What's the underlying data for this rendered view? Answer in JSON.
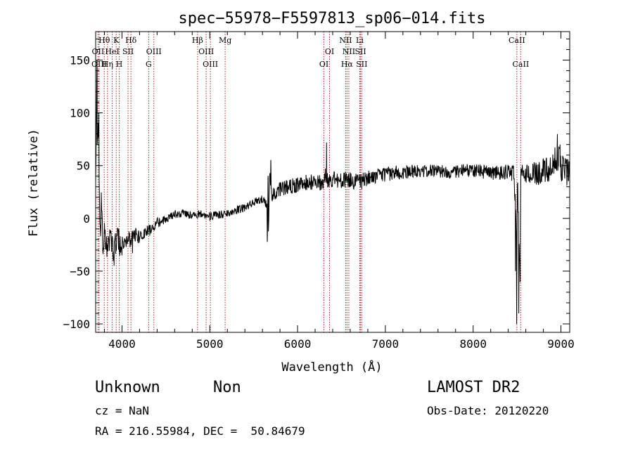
{
  "chart_data": {
    "type": "line",
    "title": "spec−55978−F5597813_sp06−014.fits",
    "xlabel": "Wavelength (Å)",
    "ylabel": "Flux (relative)",
    "xlim": [
      3700,
      9100
    ],
    "ylim": [
      -108,
      177
    ],
    "x_ticks": [
      4000,
      5000,
      6000,
      7000,
      8000,
      9000
    ],
    "y_ticks": [
      -100,
      -50,
      0,
      50,
      100,
      150
    ],
    "grid": false,
    "line_color": "#000000",
    "marker_color": "#b22222",
    "spectral_lines": [
      {
        "label": "Hθ",
        "x": 3798,
        "row": 1
      },
      {
        "label": "OII",
        "x": 3727,
        "row": 2
      },
      {
        "label": "OIII",
        "x": 3740,
        "row": 3
      },
      {
        "label": "K",
        "x": 3934,
        "row": 1
      },
      {
        "label": "HeI",
        "x": 3889,
        "row": 2
      },
      {
        "label": "Hη",
        "x": 3835,
        "row": 3
      },
      {
        "label": "Hδ",
        "x": 4102,
        "row": 1
      },
      {
        "label": "SII",
        "x": 4069,
        "row": 2
      },
      {
        "label": "H",
        "x": 3969,
        "row": 3
      },
      {
        "label": "OIII",
        "x": 4363,
        "row": 2
      },
      {
        "label": "G",
        "x": 4304,
        "row": 3
      },
      {
        "label": "Hβ",
        "x": 4861,
        "row": 1
      },
      {
        "label": "OIII",
        "x": 4959,
        "row": 2
      },
      {
        "label": "OIII",
        "x": 5007,
        "row": 3
      },
      {
        "label": "Mg",
        "x": 5175,
        "row": 1
      },
      {
        "label": "OI",
        "x": 6364,
        "row": 2
      },
      {
        "label": "OI",
        "x": 6300,
        "row": 3
      },
      {
        "label": "NII",
        "x": 6548,
        "row": 1
      },
      {
        "label": "Li",
        "x": 6708,
        "row": 1
      },
      {
        "label": "NII",
        "x": 6584,
        "row": 2
      },
      {
        "label": "SII",
        "x": 6717,
        "row": 2
      },
      {
        "label": "Hα",
        "x": 6563,
        "row": 3
      },
      {
        "label": "SII",
        "x": 6731,
        "row": 3
      },
      {
        "label": "CaII",
        "x": 8498,
        "row": 1
      },
      {
        "label": "CaII",
        "x": 8542,
        "row": 3
      }
    ],
    "spectrum_anchors": [
      [
        3700,
        40
      ],
      [
        3712,
        130
      ],
      [
        3720,
        60
      ],
      [
        3735,
        100
      ],
      [
        3745,
        10
      ],
      [
        3755,
        -20
      ],
      [
        3765,
        20
      ],
      [
        3780,
        -25
      ],
      [
        3800,
        -10
      ],
      [
        3830,
        -35
      ],
      [
        3860,
        -15
      ],
      [
        3900,
        -30
      ],
      [
        3950,
        -20
      ],
      [
        4000,
        -25
      ],
      [
        4050,
        -22
      ],
      [
        4100,
        -20
      ],
      [
        4150,
        -15
      ],
      [
        4200,
        -18
      ],
      [
        4250,
        -14
      ],
      [
        4300,
        -12
      ],
      [
        4350,
        -8
      ],
      [
        4400,
        -4
      ],
      [
        4450,
        -3
      ],
      [
        4500,
        -1
      ],
      [
        4550,
        2
      ],
      [
        4600,
        4
      ],
      [
        4700,
        5
      ],
      [
        4800,
        3
      ],
      [
        4900,
        4
      ],
      [
        5000,
        2
      ],
      [
        5100,
        3
      ],
      [
        5200,
        5
      ],
      [
        5300,
        8
      ],
      [
        5400,
        10
      ],
      [
        5500,
        15
      ],
      [
        5600,
        18
      ],
      [
        5650,
        15
      ],
      [
        5670,
        -15
      ],
      [
        5685,
        48
      ],
      [
        5700,
        22
      ],
      [
        5800,
        28
      ],
      [
        5900,
        30
      ],
      [
        6000,
        32
      ],
      [
        6100,
        34
      ],
      [
        6200,
        35
      ],
      [
        6300,
        33
      ],
      [
        6320,
        45
      ],
      [
        6330,
        36
      ],
      [
        6400,
        37
      ],
      [
        6500,
        35
      ],
      [
        6563,
        38
      ],
      [
        6600,
        36
      ],
      [
        6700,
        34
      ],
      [
        6800,
        38
      ],
      [
        6900,
        40
      ],
      [
        7000,
        42
      ],
      [
        7200,
        44
      ],
      [
        7400,
        45
      ],
      [
        7600,
        45
      ],
      [
        7800,
        44
      ],
      [
        8000,
        46
      ],
      [
        8200,
        43
      ],
      [
        8400,
        44
      ],
      [
        8460,
        42
      ],
      [
        8480,
        20
      ],
      [
        8495,
        -30
      ],
      [
        8505,
        40
      ],
      [
        8530,
        -55
      ],
      [
        8545,
        45
      ],
      [
        8570,
        40
      ],
      [
        8600,
        43
      ],
      [
        8700,
        42
      ],
      [
        8800,
        45
      ],
      [
        8900,
        44
      ],
      [
        8950,
        60
      ],
      [
        9000,
        50
      ],
      [
        9050,
        45
      ],
      [
        9100,
        42
      ]
    ],
    "spectrum_noise": [
      [
        3700,
        22
      ],
      [
        3800,
        15
      ],
      [
        4100,
        8
      ],
      [
        4500,
        4
      ],
      [
        5600,
        4
      ],
      [
        5700,
        7
      ],
      [
        6500,
        8
      ],
      [
        7500,
        6
      ],
      [
        8400,
        7
      ],
      [
        8900,
        14
      ],
      [
        9100,
        16
      ]
    ],
    "spectrum_spikes": [
      [
        3715,
        150
      ],
      [
        3718,
        70
      ],
      [
        3728,
        90
      ],
      [
        3748,
        -5
      ],
      [
        3790,
        -30
      ],
      [
        3910,
        -45
      ],
      [
        3975,
        -35
      ],
      [
        4120,
        -33
      ],
      [
        5655,
        -22
      ],
      [
        5665,
        40
      ],
      [
        5695,
        55
      ],
      [
        6330,
        72
      ],
      [
        6338,
        38
      ],
      [
        8482,
        -50
      ],
      [
        8496,
        -100
      ],
      [
        8520,
        -90
      ],
      [
        8535,
        -60
      ],
      [
        8960,
        80
      ],
      [
        8990,
        70
      ]
    ]
  },
  "footer": {
    "object_class": "Unknown",
    "subclass": "Non",
    "survey": "LAMOST DR2",
    "cz": "cz = NaN",
    "obs_date": "Obs-Date: 20120220",
    "coords": "RA = 216.55984, DEC =  50.84679"
  }
}
